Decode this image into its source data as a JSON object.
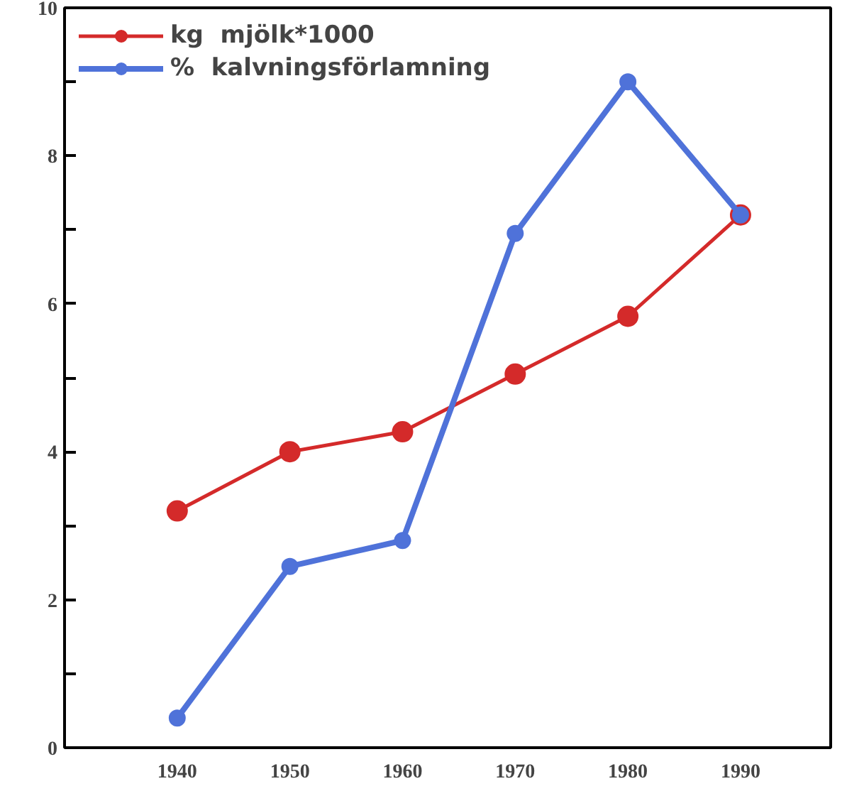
{
  "chart_data": {
    "type": "line",
    "x": [
      1940,
      1950,
      1960,
      1970,
      1980,
      1990
    ],
    "series": [
      {
        "name": "kg  mjölk*1000",
        "color": "#d42a2a",
        "values": [
          3.2,
          4.0,
          4.27,
          5.05,
          5.83,
          7.2
        ]
      },
      {
        "name": "%  kalvningsförlamning",
        "color": "#4f72d9",
        "values": [
          0.4,
          2.45,
          2.8,
          6.95,
          9.0,
          7.2
        ]
      }
    ],
    "xlim": [
      1930,
      1998
    ],
    "xticks": [
      1940,
      1950,
      1960,
      1970,
      1980,
      1990
    ],
    "ylim": [
      0,
      10
    ],
    "yticks": [
      0,
      {
        "value": 1,
        "label": null
      },
      2,
      {
        "value": 3,
        "label": null
      },
      4,
      {
        "value": 5,
        "label": null
      },
      6,
      {
        "value": 7,
        "label": null
      },
      8,
      {
        "value": 9,
        "label": null
      },
      10
    ],
    "marker": "circle",
    "grid": false,
    "legend": "top left"
  }
}
